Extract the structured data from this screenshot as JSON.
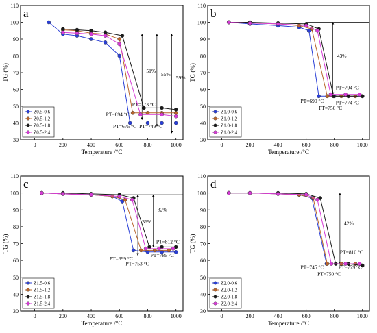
{
  "colors": {
    "Z0.5-0.6": "#2a3fd6",
    "Z0.5-1.2": "#b8642a",
    "Z0.5-1.8": "#1a1a1a",
    "Z0.5-2.4": "#d63ad6",
    "Z1.0-0.6": "#2a3fd6",
    "Z1.0-1.2": "#b8642a",
    "Z1.0-1.8": "#1a1a1a",
    "Z1.0-2.4": "#d63ad6",
    "Z1.5-0.6": "#2a3fd6",
    "Z1.5-1.2": "#b8642a",
    "Z1.5-1.8": "#1a1a1a",
    "Z1.5-2.4": "#d63ad6",
    "Z2.0-0.6": "#2a3fd6",
    "Z2.0-1.2": "#b8642a",
    "Z2.0-1.8": "#1a1a1a",
    "Z2.0-2.4": "#d63ad6"
  },
  "chart_data": [
    {
      "type": "line",
      "panel_letter": "a",
      "xlabel": "Temperature /°C",
      "ylabel": "TG (%)",
      "xlim": [
        -100,
        1050
      ],
      "ylim": [
        30,
        110
      ],
      "xticks": [
        0,
        200,
        400,
        600,
        800,
        1000
      ],
      "yticks": [
        30,
        40,
        50,
        60,
        70,
        80,
        90,
        100,
        110
      ],
      "legend_position": "bottom-left",
      "series": [
        {
          "name": "Z0.5-0.6",
          "points": [
            [
              100,
              100
            ],
            [
              200,
              93
            ],
            [
              300,
              92
            ],
            [
              400,
              90
            ],
            [
              500,
              88
            ],
            [
              600,
              80
            ],
            [
              675,
              40
            ],
            [
              800,
              40
            ],
            [
              900,
              40
            ],
            [
              1000,
              40
            ]
          ]
        },
        {
          "name": "Z0.5-1.2",
          "points": [
            [
              200,
              95.5
            ],
            [
              300,
              95
            ],
            [
              400,
              93.5
            ],
            [
              500,
              93
            ],
            [
              600,
              90
            ],
            [
              694,
              46
            ],
            [
              800,
              46
            ],
            [
              900,
              46
            ],
            [
              1000,
              46
            ]
          ]
        },
        {
          "name": "Z0.5-1.8",
          "points": [
            [
              200,
              96
            ],
            [
              300,
              95.5
            ],
            [
              400,
              95
            ],
            [
              500,
              94
            ],
            [
              620,
              92
            ],
            [
              773,
              49
            ],
            [
              900,
              49
            ],
            [
              1000,
              48
            ]
          ]
        },
        {
          "name": "Z0.5-2.4",
          "points": [
            [
              200,
              94
            ],
            [
              300,
              93.5
            ],
            [
              400,
              93
            ],
            [
              500,
              92
            ],
            [
              600,
              87
            ],
            [
              749,
              45
            ],
            [
              900,
              45
            ],
            [
              1000,
              44
            ]
          ]
        }
      ],
      "annotations": [
        {
          "text": "51%",
          "x": 790,
          "y": 70
        },
        {
          "text": "55%",
          "x": 895,
          "y": 68
        },
        {
          "text": "59%",
          "x": 1000,
          "y": 66
        },
        {
          "text": "PT=773 °C",
          "x": 690,
          "y": 50
        },
        {
          "text": "PT=694 °C",
          "x": 505,
          "y": 44
        },
        {
          "text": "PT=675 °C",
          "x": 555,
          "y": 37
        },
        {
          "text": "PT=749 °C",
          "x": 740,
          "y": 37
        }
      ]
    },
    {
      "type": "line",
      "panel_letter": "b",
      "xlabel": "Temperature /°C",
      "ylabel": "TG (%)",
      "xlim": [
        -100,
        1050
      ],
      "ylim": [
        30,
        110
      ],
      "xticks": [
        0,
        200,
        400,
        600,
        800,
        1000
      ],
      "yticks": [
        30,
        40,
        50,
        60,
        70,
        80,
        90,
        100,
        110
      ],
      "legend_position": "bottom-left",
      "series": [
        {
          "name": "Z1.0-0.6",
          "points": [
            [
              50,
              100
            ],
            [
              200,
              99
            ],
            [
              400,
              98
            ],
            [
              550,
              97
            ],
            [
              620,
              95
            ],
            [
              690,
              56
            ],
            [
              800,
              56
            ],
            [
              900,
              56
            ],
            [
              1000,
              56
            ]
          ]
        },
        {
          "name": "Z1.0-1.2",
          "points": [
            [
              50,
              100
            ],
            [
              200,
              99.5
            ],
            [
              400,
              99
            ],
            [
              550,
              98
            ],
            [
              640,
              96
            ],
            [
              750,
              56
            ],
            [
              850,
              56
            ],
            [
              950,
              56
            ]
          ]
        },
        {
          "name": "Z1.0-1.8",
          "points": [
            [
              50,
              100
            ],
            [
              200,
              100
            ],
            [
              400,
              99.5
            ],
            [
              600,
              99
            ],
            [
              690,
              96
            ],
            [
              794,
              56
            ],
            [
              900,
              56
            ],
            [
              1000,
              56
            ]
          ]
        },
        {
          "name": "Z1.0-2.4",
          "points": [
            [
              50,
              100
            ],
            [
              200,
              99.5
            ],
            [
              400,
              99
            ],
            [
              600,
              98
            ],
            [
              680,
              95
            ],
            [
              774,
              57
            ],
            [
              880,
              57
            ],
            [
              980,
              57
            ]
          ]
        }
      ],
      "annotations": [
        {
          "text": "43%",
          "x": 820,
          "y": 79
        },
        {
          "text": "PT=794 °C",
          "x": 810,
          "y": 60
        },
        {
          "text": "PT=690 °C",
          "x": 560,
          "y": 52
        },
        {
          "text": "PT=750 °C",
          "x": 690,
          "y": 48
        },
        {
          "text": "PT=774 °C",
          "x": 810,
          "y": 51
        }
      ]
    },
    {
      "type": "line",
      "panel_letter": "c",
      "xlabel": "Temperature /°C",
      "ylabel": "TG (%)",
      "xlim": [
        -100,
        1050
      ],
      "ylim": [
        30,
        110
      ],
      "xticks": [
        0,
        200,
        400,
        600,
        800,
        1000
      ],
      "yticks": [
        30,
        40,
        50,
        60,
        70,
        80,
        90,
        100,
        110
      ],
      "legend_position": "bottom-left",
      "series": [
        {
          "name": "Z1.5-0.6",
          "points": [
            [
              50,
              100
            ],
            [
              200,
              99.5
            ],
            [
              400,
              99
            ],
            [
              550,
              98
            ],
            [
              620,
              95
            ],
            [
              699,
              66
            ],
            [
              800,
              65
            ],
            [
              900,
              65
            ],
            [
              1000,
              65
            ]
          ]
        },
        {
          "name": "Z1.5-1.2",
          "points": [
            [
              50,
              100
            ],
            [
              200,
              99.5
            ],
            [
              400,
              99
            ],
            [
              550,
              98
            ],
            [
              640,
              96
            ],
            [
              753,
              66
            ],
            [
              850,
              66
            ],
            [
              950,
              66
            ]
          ]
        },
        {
          "name": "Z1.5-1.8",
          "points": [
            [
              50,
              100
            ],
            [
              200,
              100
            ],
            [
              400,
              99.5
            ],
            [
              600,
              99
            ],
            [
              700,
              97
            ],
            [
              812,
              68
            ],
            [
              900,
              68
            ],
            [
              1000,
              68
            ]
          ]
        },
        {
          "name": "Z1.5-2.4",
          "points": [
            [
              50,
              100
            ],
            [
              200,
              99.5
            ],
            [
              400,
              99
            ],
            [
              600,
              98
            ],
            [
              690,
              96
            ],
            [
              786,
              67
            ],
            [
              880,
              67
            ],
            [
              980,
              67
            ]
          ]
        }
      ],
      "annotations": [
        {
          "text": "36%",
          "x": 760,
          "y": 82
        },
        {
          "text": "32%",
          "x": 870,
          "y": 89
        },
        {
          "text": "PT=812 °C",
          "x": 860,
          "y": 70
        },
        {
          "text": "PT=699 °C",
          "x": 530,
          "y": 60
        },
        {
          "text": "PT=753 °C",
          "x": 645,
          "y": 57
        },
        {
          "text": "PT=786 °C",
          "x": 820,
          "y": 62
        }
      ]
    },
    {
      "type": "line",
      "panel_letter": "d",
      "xlabel": "Temperature /°C",
      "ylabel": "TG (%)",
      "xlim": [
        -100,
        1050
      ],
      "ylim": [
        30,
        110
      ],
      "xticks": [
        0,
        200,
        400,
        600,
        800,
        1000
      ],
      "yticks": [
        30,
        40,
        50,
        60,
        70,
        80,
        90,
        100,
        110
      ],
      "legend_position": "bottom-left",
      "series": [
        {
          "name": "Z2.0-0.6",
          "points": [
            [
              50,
              100
            ],
            [
              200,
              100
            ],
            [
              400,
              99.5
            ],
            [
              550,
              99
            ],
            [
              640,
              97
            ],
            [
              745,
              58
            ],
            [
              850,
              58
            ],
            [
              950,
              58
            ]
          ]
        },
        {
          "name": "Z2.0-1.2",
          "points": [
            [
              50,
              100
            ],
            [
              200,
              100
            ],
            [
              400,
              99.5
            ],
            [
              550,
              99
            ],
            [
              650,
              97
            ],
            [
              750,
              58
            ],
            [
              850,
              58
            ],
            [
              950,
              58
            ]
          ]
        },
        {
          "name": "Z2.0-1.8",
          "points": [
            [
              50,
              100
            ],
            [
              200,
              100
            ],
            [
              400,
              100
            ],
            [
              600,
              99.5
            ],
            [
              700,
              97
            ],
            [
              810,
              58
            ],
            [
              900,
              58
            ],
            [
              1000,
              57
            ]
          ]
        },
        {
          "name": "Z2.0-2.4",
          "points": [
            [
              50,
              100
            ],
            [
              200,
              100
            ],
            [
              400,
              99.5
            ],
            [
              600,
              99
            ],
            [
              680,
              96
            ],
            [
              779,
              58
            ],
            [
              880,
              58
            ],
            [
              980,
              58
            ]
          ]
        }
      ],
      "annotations": [
        {
          "text": "42%",
          "x": 870,
          "y": 81
        },
        {
          "text": "PT=810 °C",
          "x": 840,
          "y": 64
        },
        {
          "text": "PT=745 °C",
          "x": 560,
          "y": 55
        },
        {
          "text": "PT=779 °C",
          "x": 830,
          "y": 55
        },
        {
          "text": "PT=750 °C",
          "x": 680,
          "y": 51
        }
      ]
    }
  ]
}
